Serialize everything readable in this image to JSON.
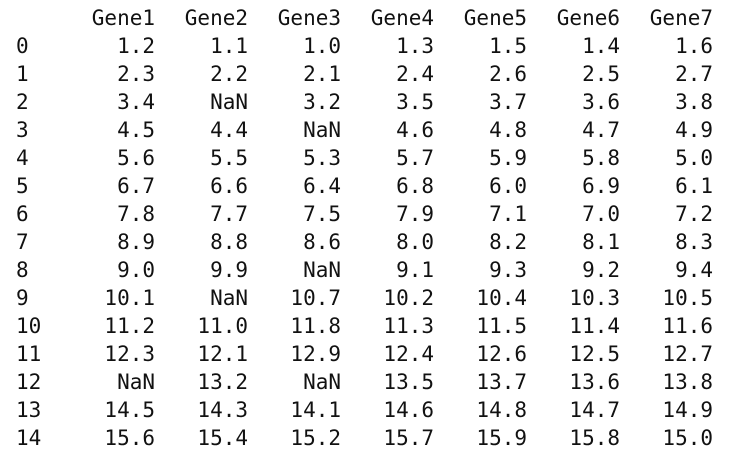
{
  "dataframe": {
    "columns": [
      "Gene1",
      "Gene2",
      "Gene3",
      "Gene4",
      "Gene5",
      "Gene6",
      "Gene7"
    ],
    "index": [
      "0",
      "1",
      "2",
      "3",
      "4",
      "5",
      "6",
      "7",
      "8",
      "9",
      "10",
      "11",
      "12",
      "13",
      "14"
    ],
    "rows": [
      [
        "1.2",
        "1.1",
        "1.0",
        "1.3",
        "1.5",
        "1.4",
        "1.6"
      ],
      [
        "2.3",
        "2.2",
        "2.1",
        "2.4",
        "2.6",
        "2.5",
        "2.7"
      ],
      [
        "3.4",
        "NaN",
        "3.2",
        "3.5",
        "3.7",
        "3.6",
        "3.8"
      ],
      [
        "4.5",
        "4.4",
        "NaN",
        "4.6",
        "4.8",
        "4.7",
        "4.9"
      ],
      [
        "5.6",
        "5.5",
        "5.3",
        "5.7",
        "5.9",
        "5.8",
        "5.0"
      ],
      [
        "6.7",
        "6.6",
        "6.4",
        "6.8",
        "6.0",
        "6.9",
        "6.1"
      ],
      [
        "7.8",
        "7.7",
        "7.5",
        "7.9",
        "7.1",
        "7.0",
        "7.2"
      ],
      [
        "8.9",
        "8.8",
        "8.6",
        "8.0",
        "8.2",
        "8.1",
        "8.3"
      ],
      [
        "9.0",
        "9.9",
        "NaN",
        "9.1",
        "9.3",
        "9.2",
        "9.4"
      ],
      [
        "10.1",
        "NaN",
        "10.7",
        "10.2",
        "10.4",
        "10.3",
        "10.5"
      ],
      [
        "11.2",
        "11.0",
        "11.8",
        "11.3",
        "11.5",
        "11.4",
        "11.6"
      ],
      [
        "12.3",
        "12.1",
        "12.9",
        "12.4",
        "12.6",
        "12.5",
        "12.7"
      ],
      [
        "NaN",
        "13.2",
        "NaN",
        "13.5",
        "13.7",
        "13.6",
        "13.8"
      ],
      [
        "14.5",
        "14.3",
        "14.1",
        "14.6",
        "14.8",
        "14.7",
        "14.9"
      ],
      [
        "15.6",
        "15.4",
        "15.2",
        "15.7",
        "15.9",
        "15.8",
        "15.0"
      ]
    ]
  }
}
